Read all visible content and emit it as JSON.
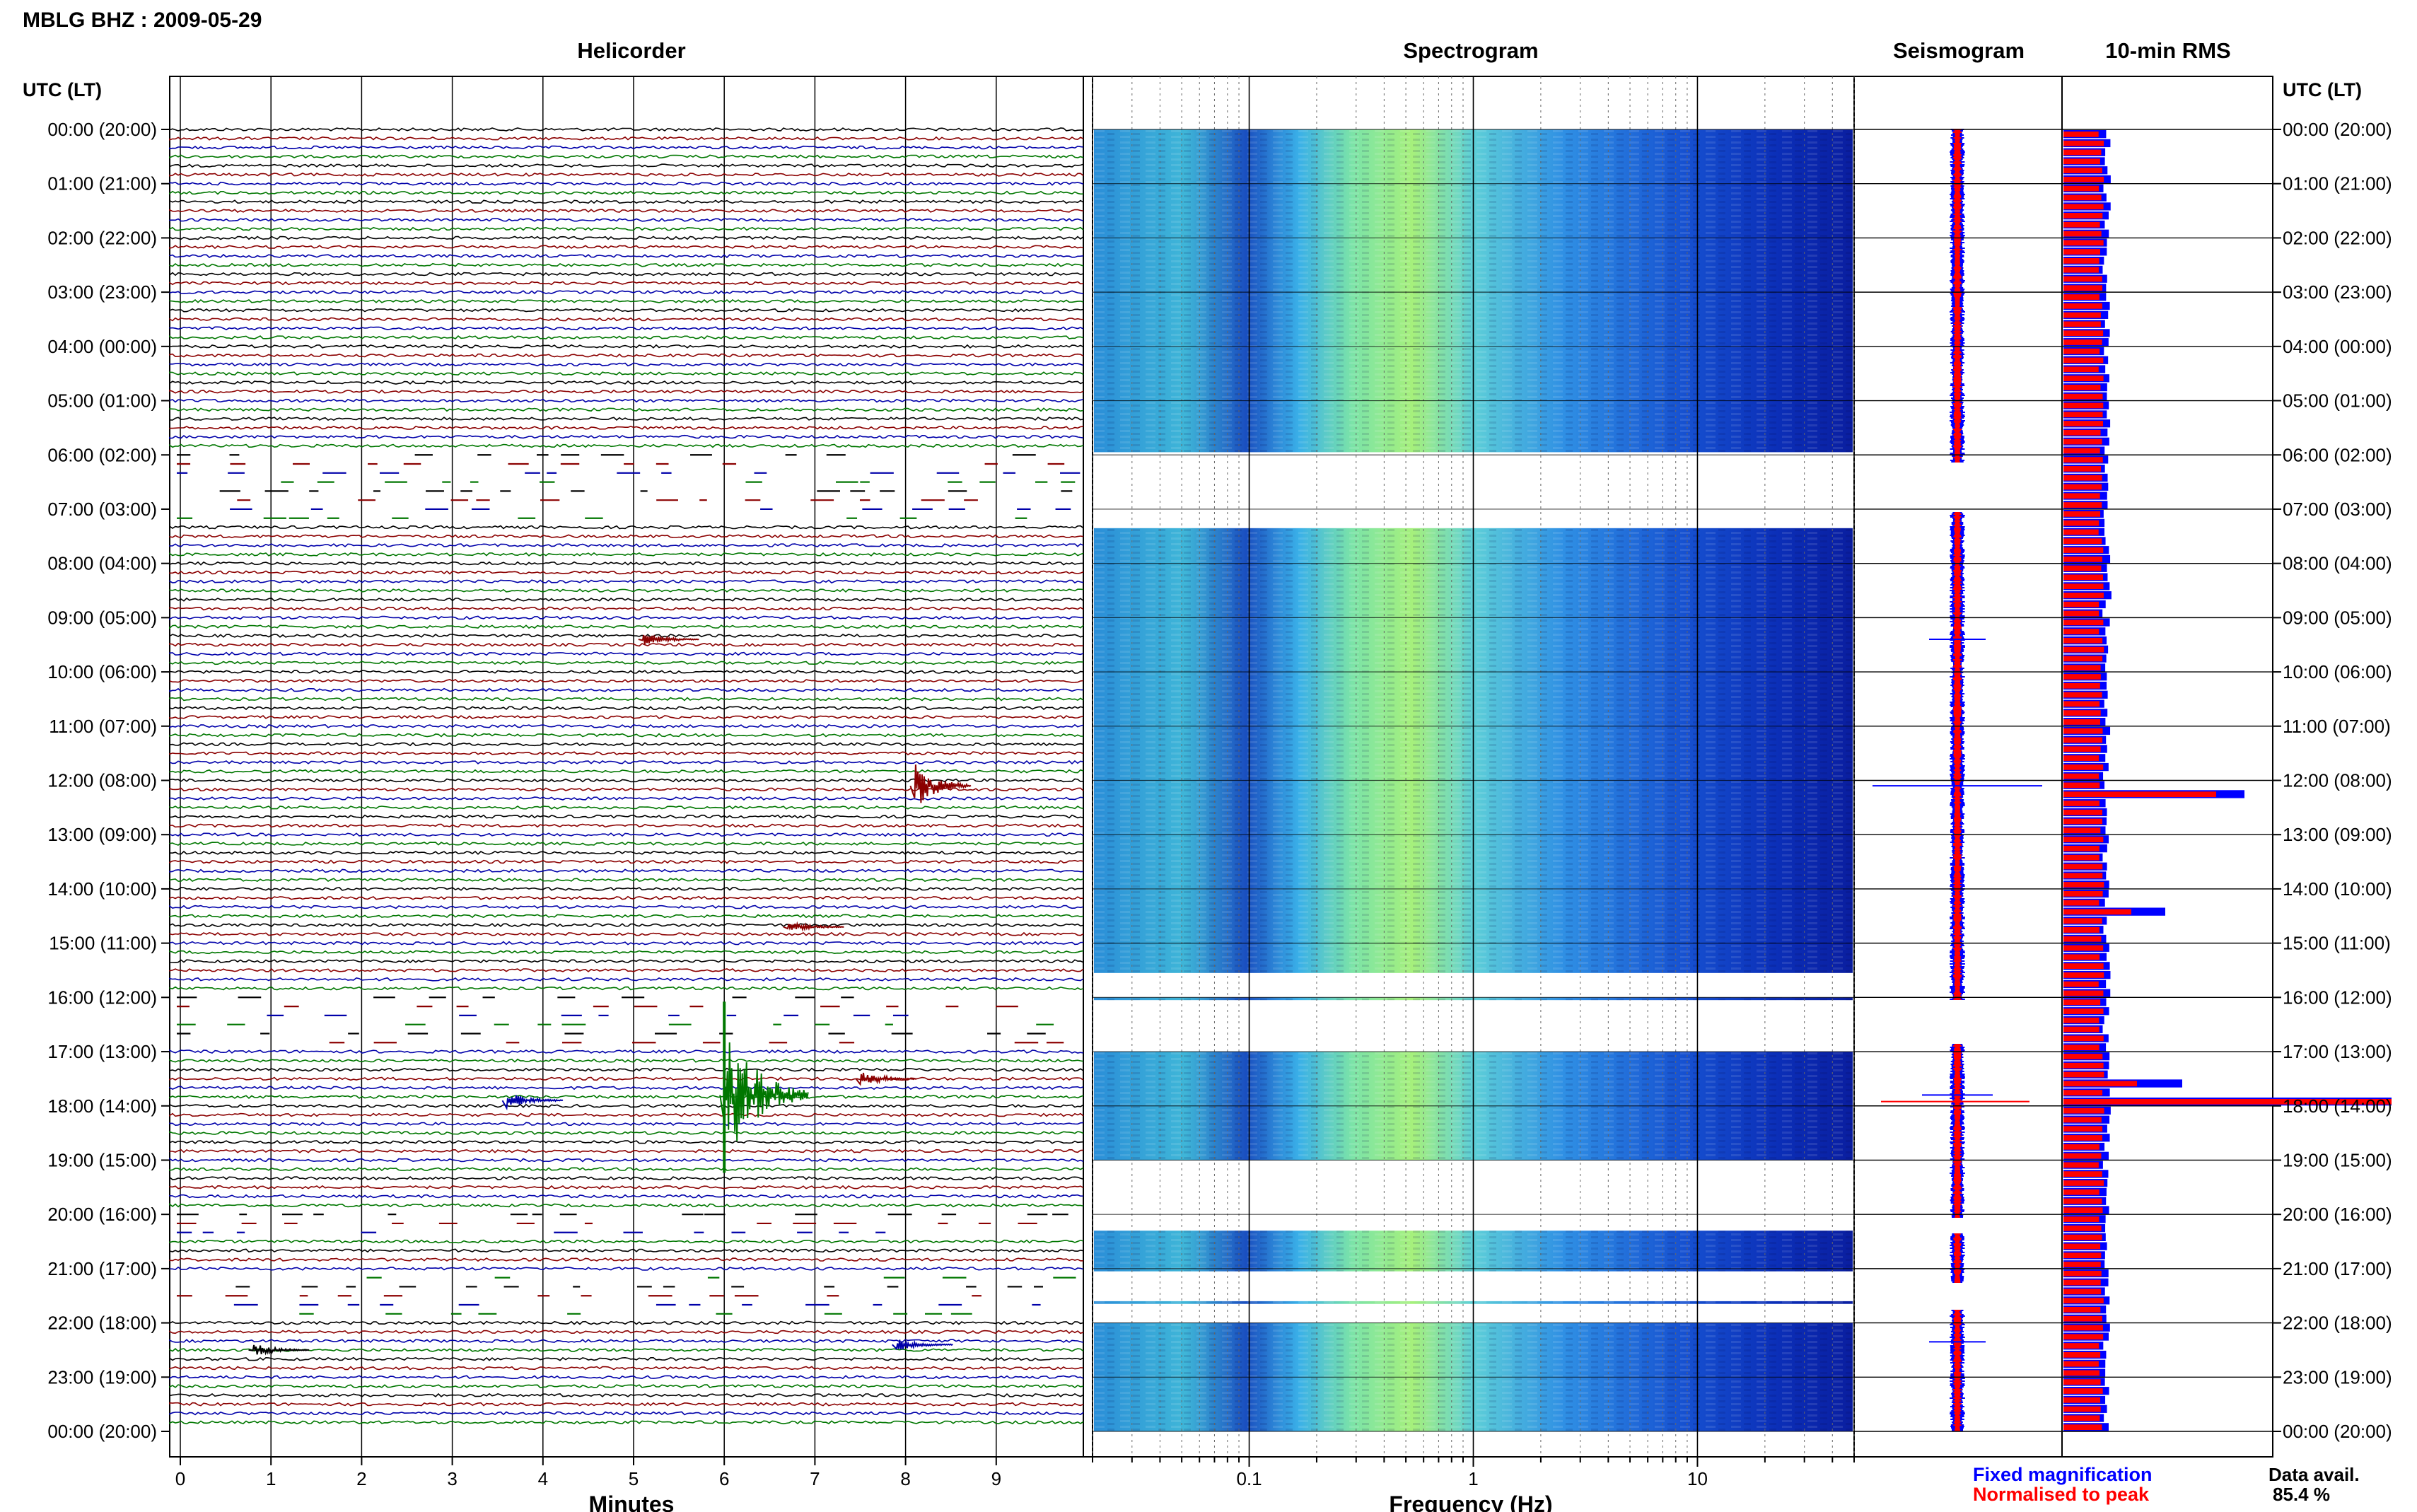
{
  "header": {
    "station_title": "MBLG BHZ : 2009-05-29"
  },
  "panels": {
    "helicorder": "Helicorder",
    "spectrogram": "Spectrogram",
    "seismogram": "Seismogram",
    "rms": "10-min RMS"
  },
  "axis_labels": {
    "time_left": "UTC (LT)",
    "time_right": "UTC (LT)",
    "helicorder_x": "Minutes",
    "spectrogram_x": "Frequency (Hz)"
  },
  "legend": {
    "fixed": "Fixed magnification",
    "normalised": "Normalised to peak",
    "fixed_color": "#0000ff",
    "normalised_color": "#ff0000"
  },
  "data_availability": {
    "label": "Data avail.",
    "value": "85.4 %"
  },
  "colors": {
    "trace_cycle": [
      "#000000",
      "#8b0000",
      "#0000aa",
      "#007700"
    ],
    "spectrogram_low": "#0a1ea0",
    "spectrogram_mid": "#1ea8e0",
    "spectrogram_high": "#9aef7a",
    "rms_fixed": "#0000ff",
    "rms_normalised": "#ff0000"
  },
  "chart_data": [
    {
      "type": "line",
      "name": "Helicorder",
      "x_ticks": [
        "0",
        "1",
        "2",
        "3",
        "4",
        "5",
        "6",
        "7",
        "8",
        "9"
      ],
      "xlim": [
        0,
        10
      ],
      "y_ticks": [
        "00:00 (20:00)",
        "01:00 (21:00)",
        "02:00 (22:00)",
        "03:00 (23:00)",
        "04:00 (00:00)",
        "05:00 (01:00)",
        "06:00 (02:00)",
        "07:00 (03:00)",
        "08:00 (04:00)",
        "09:00 (05:00)",
        "10:00 (06:00)",
        "11:00 (07:00)",
        "12:00 (08:00)",
        "13:00 (09:00)",
        "14:00 (10:00)",
        "15:00 (11:00)",
        "16:00 (12:00)",
        "17:00 (13:00)",
        "18:00 (14:00)",
        "19:00 (15:00)",
        "20:00 (16:00)",
        "21:00 (17:00)",
        "22:00 (18:00)",
        "23:00 (19:00)",
        "00:00 (20:00)"
      ],
      "lines_per_hour": 6,
      "gaps_hours": [
        [
          6.0,
          7.2
        ],
        [
          15.9,
          17.0
        ],
        [
          19.9,
          20.5
        ],
        [
          21.1,
          21.9
        ]
      ],
      "events": [
        {
          "hour": 9.4,
          "minute": 5.1,
          "color": "#8b0000",
          "amp": 10
        },
        {
          "hour": 12.1,
          "minute": 8.1,
          "color": "#8b0000",
          "amp": 34
        },
        {
          "hour": 14.7,
          "minute": 6.7,
          "color": "#8b0000",
          "amp": 8
        },
        {
          "hour": 17.8,
          "minute": 6.0,
          "color": "#007700",
          "amp": 110
        },
        {
          "hour": 17.9,
          "minute": 3.6,
          "color": "#0000aa",
          "amp": 12
        },
        {
          "hour": 17.5,
          "minute": 7.5,
          "color": "#8b0000",
          "amp": 12
        },
        {
          "hour": 22.5,
          "minute": 0.8,
          "color": "#000000",
          "amp": 10
        },
        {
          "hour": 22.4,
          "minute": 7.9,
          "color": "#0000aa",
          "amp": 10
        }
      ]
    },
    {
      "type": "heatmap",
      "name": "Spectrogram",
      "x_scale": "log",
      "xlim": [
        0.02,
        50
      ],
      "x_ticks": [
        "0.1",
        "1",
        "10"
      ],
      "bands_hours": [
        [
          0,
          5.95
        ],
        [
          7.35,
          15.55
        ],
        [
          16.0,
          16.05
        ],
        [
          17.0,
          19.0
        ],
        [
          20.3,
          21.05
        ],
        [
          21.6,
          21.65
        ],
        [
          22.0,
          24.0
        ]
      ]
    },
    {
      "type": "line",
      "name": "Seismogram",
      "series": [
        {
          "name": "Fixed magnification",
          "color": "#0000ff"
        },
        {
          "name": "Normalised to peak",
          "color": "#ff0000"
        }
      ]
    },
    {
      "type": "bar",
      "name": "10-min RMS",
      "series": [
        {
          "name": "Fixed magnification",
          "color": "#0000ff"
        },
        {
          "name": "Normalised to peak",
          "color": "#ff0000"
        }
      ],
      "bin_minutes": 10,
      "peaks": [
        {
          "hour": 12.15,
          "value": 2.7,
          "fixed": 3.2
        },
        {
          "hour": 14.35,
          "value": 1.2,
          "fixed": 1.8
        },
        {
          "hour": 17.55,
          "value": 1.3,
          "fixed": 2.1
        },
        {
          "hour": 17.9,
          "value": 5.8,
          "fixed": 5.8
        }
      ]
    }
  ]
}
